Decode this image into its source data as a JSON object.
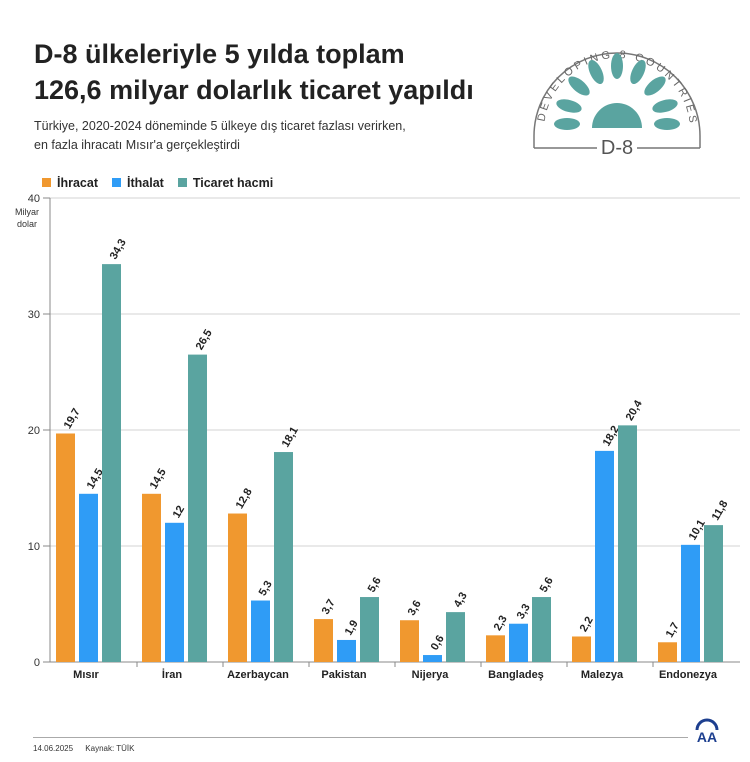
{
  "header": {
    "title_line1": "D-8 ülkeleriyle 5 yılda toplam",
    "title_line2": "126,6 milyar dolarlık ticaret yapıldı",
    "subtitle_line1": "Türkiye, 2020-2024 döneminde 5 ülkeye dış ticaret fazlası verirken,",
    "subtitle_line2": "en fazla ihracatı Mısır'a gerçekleştirdi"
  },
  "logo": {
    "text_top": "DEVELOPING 8 COUNTRIES",
    "text_center": "D-8"
  },
  "footer": {
    "date": "14.06.2025",
    "source": "Kaynak: TÜİK",
    "brand_logo": "AA"
  },
  "colors": {
    "ihracat": "#f0982f",
    "ithalat": "#2f9cf6",
    "ticaret": "#5aa4a0"
  },
  "chart_data": {
    "type": "bar",
    "ylabel": "Milyar dolar",
    "ylim": [
      0,
      40
    ],
    "yticks": [
      0,
      10,
      20,
      30,
      40
    ],
    "grid": true,
    "legend_position": "top-left",
    "categories": [
      "Mısır",
      "İran",
      "Azerbaycan",
      "Pakistan",
      "Nijerya",
      "Bangladeş",
      "Malezya",
      "Endonezya"
    ],
    "series": [
      {
        "name": "İhracat",
        "values": [
          19.7,
          14.5,
          12.8,
          3.7,
          3.6,
          2.3,
          2.2,
          1.7
        ],
        "labels": [
          "19,7",
          "14,5",
          "12,8",
          "3,7",
          "3,6",
          "2,3",
          "2,2",
          "1,7"
        ]
      },
      {
        "name": "İthalat",
        "values": [
          14.5,
          12,
          5.3,
          1.9,
          0.6,
          3.3,
          18.2,
          10.1
        ],
        "labels": [
          "14,5",
          "12",
          "5,3",
          "1,9",
          "0,6",
          "3,3",
          "18,2",
          "10,1"
        ]
      },
      {
        "name": "Ticaret hacmi",
        "values": [
          34.3,
          26.5,
          18.1,
          5.6,
          4.3,
          5.6,
          20.4,
          11.8
        ],
        "labels": [
          "34,3",
          "26,5",
          "18,1",
          "5,6",
          "4,3",
          "5,6",
          "20,4",
          "11,8"
        ]
      }
    ]
  }
}
